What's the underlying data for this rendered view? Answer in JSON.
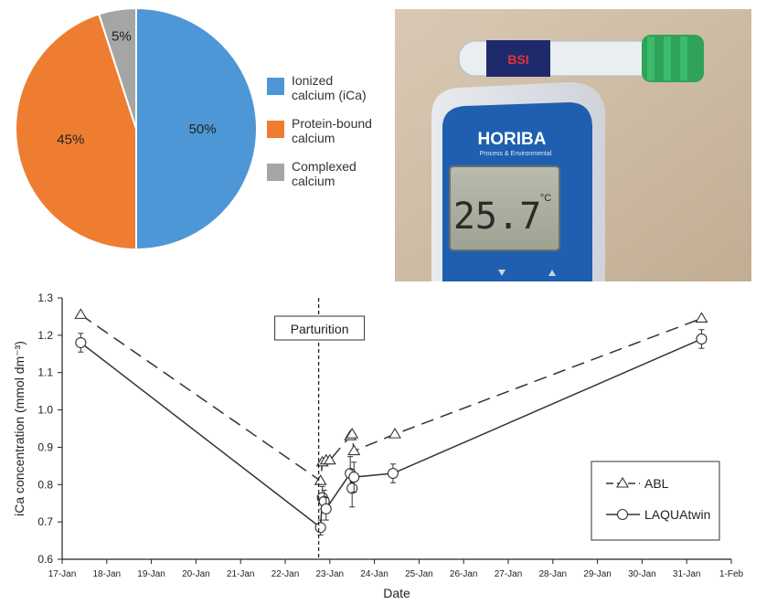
{
  "chart_data": [
    {
      "type": "pie",
      "slices": [
        {
          "label": "Ionized calcium (iCa)",
          "legend_lines": [
            "Ionized",
            "calcium (iCa)"
          ],
          "value": 50,
          "value_label": "50%",
          "color": "#4e97d6"
        },
        {
          "label": "Protein-bound calcium",
          "legend_lines": [
            "Protein-bound",
            "calcium"
          ],
          "value": 45,
          "value_label": "45%",
          "color": "#ee7d31"
        },
        {
          "label": "Complexed calcium",
          "legend_lines": [
            "Complexed",
            "calcium"
          ],
          "value": 5,
          "value_label": "5%",
          "color": "#a5a5a5"
        }
      ],
      "legend_position": "right"
    },
    {
      "type": "line",
      "xlabel": "Date",
      "ylabel": "iCa concentration (mmol dm⁻³)",
      "ylim": [
        0.6,
        1.3
      ],
      "yticks": [
        "0.6",
        "0.7",
        "0.8",
        "0.9",
        "1.0",
        "1.1",
        "1.2",
        "1.3"
      ],
      "xlim": [
        "17-Jan",
        "1-Feb"
      ],
      "xticks": [
        "17-Jan",
        "18-Jan",
        "19-Jan",
        "20-Jan",
        "21-Jan",
        "22-Jan",
        "23-Jan",
        "24-Jan",
        "25-Jan",
        "26-Jan",
        "27-Jan",
        "28-Jan",
        "29-Jan",
        "30-Jan",
        "31-Jan",
        "1-Feb"
      ],
      "annotation": {
        "text": "Parturition",
        "x": "22-Jan 18:00"
      },
      "legend_position": "bottom-right",
      "series": [
        {
          "name": "ABL",
          "marker": "triangle",
          "line": "dashed",
          "points": [
            {
              "x": "17-Jan 10:00",
              "y": 1.255
            },
            {
              "x": "22-Jan 19:00",
              "y": 0.81
            },
            {
              "x": "22-Jan 20:00",
              "y": 0.86
            },
            {
              "x": "22-Jan 22:00",
              "y": 0.865
            },
            {
              "x": "23-Jan 00:00",
              "y": 0.865
            },
            {
              "x": "23-Jan 11:00",
              "y": 0.93
            },
            {
              "x": "23-Jan 12:00",
              "y": 0.935
            },
            {
              "x": "23-Jan 13:00",
              "y": 0.89
            },
            {
              "x": "24-Jan 11:00",
              "y": 0.935
            },
            {
              "x": "31-Jan 08:00",
              "y": 1.245
            }
          ]
        },
        {
          "name": "LAQUAtwin",
          "marker": "circle",
          "line": "solid",
          "points": [
            {
              "x": "17-Jan 10:00",
              "y": 1.18,
              "err": 0.025
            },
            {
              "x": "22-Jan 19:00",
              "y": 0.685,
              "err": 0.02
            },
            {
              "x": "22-Jan 20:00",
              "y": 0.765,
              "err": 0.03
            },
            {
              "x": "22-Jan 21:00",
              "y": 0.755,
              "err": 0.03
            },
            {
              "x": "22-Jan 22:00",
              "y": 0.735,
              "err": 0.03
            },
            {
              "x": "23-Jan 11:00",
              "y": 0.83,
              "err": 0.045
            },
            {
              "x": "23-Jan 12:00",
              "y": 0.79,
              "err": 0.05
            },
            {
              "x": "23-Jan 13:00",
              "y": 0.82,
              "err": 0.04
            },
            {
              "x": "24-Jan 10:00",
              "y": 0.83,
              "err": 0.025
            },
            {
              "x": "31-Jan 08:00",
              "y": 1.19,
              "err": 0.025
            }
          ]
        }
      ]
    }
  ],
  "photo": {
    "brand": "HORIBA",
    "subtitle": "Process & Environmental",
    "display_value": "25.7",
    "display_unit": "°C",
    "tube_label": "BSI"
  }
}
